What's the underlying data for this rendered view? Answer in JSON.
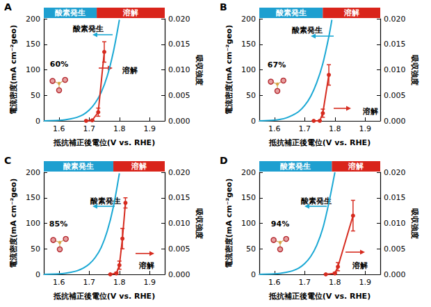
{
  "chart_data": [
    {
      "type": "line",
      "title": "A",
      "annotation": "60%",
      "xlabel": "抵抗補正後電位(V vs. RHE)",
      "ylabel": "電流密度(mA cm⁻²geo)",
      "y2label": "吸収強度",
      "xlim": [
        1.55,
        1.95
      ],
      "xticks": [
        1.6,
        1.7,
        1.8,
        1.9
      ],
      "ylim": [
        0,
        200
      ],
      "yticks": [
        0,
        50,
        100,
        150,
        200
      ],
      "y2lim": [
        0,
        0.02
      ],
      "y2ticks": [
        {
          "value": 0,
          "label": "0.000"
        },
        {
          "value": 0.005,
          "label": "0.005"
        },
        {
          "value": 0.01,
          "label": "0.010"
        },
        {
          "value": 0.015,
          "label": "0.015"
        },
        {
          "value": 0.02,
          "label": "0.020"
        }
      ],
      "grid": false,
      "regions": [
        {
          "label": "酸素発生",
          "color": "#1e9fd0",
          "from": 1.55,
          "to": 1.725
        },
        {
          "label": "溶解",
          "color": "#d9241b",
          "from": 1.725,
          "to": 1.95
        }
      ],
      "series": [
        {
          "name": "酸素発生",
          "type": "line",
          "color": "#1aa8d4",
          "marker": "none",
          "line_style": "solid",
          "x": [
            1.55,
            1.6,
            1.62,
            1.64,
            1.66,
            1.68,
            1.7,
            1.72,
            1.74,
            1.76,
            1.78,
            1.8
          ],
          "values": [
            0,
            1,
            2,
            4,
            7,
            12,
            21,
            35,
            56,
            88,
            135,
            198
          ]
        },
        {
          "name": "溶解",
          "type": "line",
          "axis": "y2",
          "color": "#d62b1f",
          "marker": "circle",
          "line_style": "solid",
          "x": [
            1.69,
            1.71,
            1.73,
            1.75
          ],
          "values": [
            0,
            0.0001,
            0.0017,
            0.0135
          ],
          "errors": [
            0.0001,
            0.0001,
            0.0008,
            0.002
          ]
        }
      ]
    },
    {
      "type": "line",
      "title": "B",
      "annotation": "67%",
      "xlabel": "抵抗補正後電位(V vs. RHE)",
      "ylabel": "電流密度(mA cm⁻²geo)",
      "y2label": "吸収強度",
      "xlim": [
        1.55,
        1.95
      ],
      "xticks": [
        1.6,
        1.7,
        1.8,
        1.9
      ],
      "ylim": [
        0,
        200
      ],
      "yticks": [
        0,
        50,
        100,
        150,
        200
      ],
      "y2lim": [
        0,
        0.02
      ],
      "y2ticks": [
        {
          "value": 0,
          "label": "0.000"
        },
        {
          "value": 0.005,
          "label": "0.005"
        },
        {
          "value": 0.01,
          "label": "0.010"
        },
        {
          "value": 0.015,
          "label": "0.015"
        },
        {
          "value": 0.02,
          "label": "0.020"
        }
      ],
      "grid": false,
      "regions": [
        {
          "label": "酸素発生",
          "color": "#1e9fd0",
          "from": 1.55,
          "to": 1.76
        },
        {
          "label": "溶解",
          "color": "#d9241b",
          "from": 1.76,
          "to": 1.95
        }
      ],
      "series": [
        {
          "name": "酸素発生",
          "type": "line",
          "color": "#1aa8d4",
          "marker": "none",
          "line_style": "solid",
          "x": [
            1.55,
            1.6,
            1.62,
            1.64,
            1.66,
            1.68,
            1.7,
            1.72,
            1.74,
            1.76,
            1.78,
            1.79
          ],
          "values": [
            0,
            1.5,
            3,
            6,
            11,
            18,
            30,
            48,
            75,
            112,
            165,
            198
          ]
        },
        {
          "name": "溶解",
          "type": "line",
          "axis": "y2",
          "color": "#d62b1f",
          "marker": "circle",
          "line_style": "solid",
          "x": [
            1.73,
            1.75,
            1.76,
            1.78
          ],
          "values": [
            0,
            0,
            0.0015,
            0.009
          ],
          "errors": [
            0,
            0.0001,
            0.0008,
            0.002
          ]
        }
      ]
    },
    {
      "type": "line",
      "title": "C",
      "annotation": "85%",
      "xlabel": "抵抗補正後電位(V vs. RHE)",
      "ylabel": "電流密度(mA cm⁻²geo)",
      "y2label": "吸収強度",
      "xlim": [
        1.55,
        1.95
      ],
      "xticks": [
        1.6,
        1.7,
        1.8,
        1.9
      ],
      "ylim": [
        0,
        200
      ],
      "yticks": [
        0,
        50,
        100,
        150,
        200
      ],
      "y2lim": [
        0,
        0.02
      ],
      "y2ticks": [
        {
          "value": 0,
          "label": "0.000"
        },
        {
          "value": 0.005,
          "label": "0.005"
        },
        {
          "value": 0.01,
          "label": "0.010"
        },
        {
          "value": 0.015,
          "label": "0.015"
        },
        {
          "value": 0.02,
          "label": "0.020"
        }
      ],
      "grid": false,
      "regions": [
        {
          "label": "酸素発生",
          "color": "#1e9fd0",
          "from": 1.55,
          "to": 1.78
        },
        {
          "label": "溶解",
          "color": "#d9241b",
          "from": 1.78,
          "to": 1.95
        }
      ],
      "series": [
        {
          "name": "酸素発生",
          "type": "line",
          "color": "#1aa8d4",
          "marker": "none",
          "line_style": "solid",
          "x": [
            1.55,
            1.6,
            1.62,
            1.64,
            1.66,
            1.68,
            1.7,
            1.72,
            1.74,
            1.76,
            1.78,
            1.8
          ],
          "values": [
            0,
            1,
            2,
            4,
            7,
            12,
            20,
            33,
            53,
            85,
            132,
            198
          ]
        },
        {
          "name": "溶解",
          "type": "line",
          "axis": "y2",
          "color": "#d62b1f",
          "marker": "circle",
          "line_style": "solid",
          "x": [
            1.77,
            1.79,
            1.8,
            1.81,
            1.82
          ],
          "values": [
            0,
            0.0002,
            0.0018,
            0.007,
            0.014
          ],
          "errors": [
            0,
            0.0002,
            0.0008,
            0.002,
            0.001
          ]
        }
      ]
    },
    {
      "type": "line",
      "title": "D",
      "annotation": "94%",
      "xlabel": "抵抗補正後電位(V vs. RHE)",
      "ylabel": "電流密度(mA cm⁻²geo)",
      "y2label": "吸収強度",
      "xlim": [
        1.55,
        1.95
      ],
      "xticks": [
        1.6,
        1.7,
        1.8,
        1.9
      ],
      "ylim": [
        0,
        200
      ],
      "yticks": [
        0,
        50,
        100,
        150,
        200
      ],
      "y2lim": [
        0,
        0.02
      ],
      "y2ticks": [
        {
          "value": 0,
          "label": "0.000"
        },
        {
          "value": 0.005,
          "label": "0.005"
        },
        {
          "value": 0.01,
          "label": "0.010"
        },
        {
          "value": 0.015,
          "label": "0.015"
        },
        {
          "value": 0.02,
          "label": "0.020"
        }
      ],
      "grid": false,
      "regions": [
        {
          "label": "酸素発生",
          "color": "#1e9fd0",
          "from": 1.55,
          "to": 1.79
        },
        {
          "label": "溶解",
          "color": "#d9241b",
          "from": 1.79,
          "to": 1.95
        }
      ],
      "series": [
        {
          "name": "酸素発生",
          "type": "line",
          "color": "#1aa8d4",
          "marker": "none",
          "line_style": "solid",
          "x": [
            1.55,
            1.6,
            1.62,
            1.64,
            1.66,
            1.68,
            1.7,
            1.72,
            1.74,
            1.76,
            1.78,
            1.8
          ],
          "values": [
            0,
            1,
            2,
            4,
            7,
            12,
            21,
            35,
            57,
            90,
            140,
            200
          ]
        },
        {
          "name": "溶解",
          "type": "line",
          "axis": "y2",
          "color": "#d62b1f",
          "marker": "circle",
          "line_style": "solid",
          "x": [
            1.77,
            1.8,
            1.81,
            1.86
          ],
          "values": [
            0,
            0.0002,
            0.0015,
            0.0115
          ],
          "errors": [
            0,
            0.0002,
            0.0008,
            0.003
          ]
        }
      ]
    }
  ]
}
